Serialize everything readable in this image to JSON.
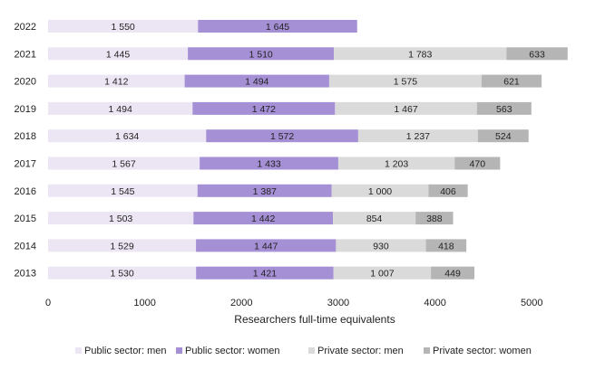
{
  "chart_data": {
    "type": "bar",
    "orientation": "horizontal",
    "stacked": true,
    "categories": [
      "2022",
      "2021",
      "2020",
      "2019",
      "2018",
      "2017",
      "2016",
      "2015",
      "2014",
      "2013"
    ],
    "series": [
      {
        "name": "Public sector: men",
        "color": "#ece6f4",
        "values": [
          1550,
          1445,
          1412,
          1494,
          1634,
          1567,
          1545,
          1503,
          1529,
          1530
        ],
        "labels": [
          "1 550",
          "1 445",
          "1 412",
          "1 494",
          "1 634",
          "1 567",
          "1 545",
          "1 503",
          "1 529",
          "1 530"
        ]
      },
      {
        "name": "Public sector: women",
        "color": "#a58fd5",
        "values": [
          1645,
          1510,
          1494,
          1472,
          1572,
          1433,
          1387,
          1442,
          1447,
          1421
        ],
        "labels": [
          "1 645",
          "1 510",
          "1 494",
          "1 472",
          "1 572",
          "1 433",
          "1 387",
          "1 442",
          "1 447",
          "1 421"
        ]
      },
      {
        "name": "Private sector: men",
        "color": "#dadada",
        "values": [
          null,
          1783,
          1575,
          1467,
          1237,
          1203,
          1000,
          854,
          930,
          1007
        ],
        "labels": [
          "",
          "1 783",
          "1 575",
          "1 467",
          "1 237",
          "1 203",
          "1 000",
          "854",
          "930",
          "1 007"
        ]
      },
      {
        "name": "Private sector: women",
        "color": "#b5b5b5",
        "values": [
          null,
          633,
          621,
          563,
          524,
          470,
          406,
          388,
          418,
          449
        ],
        "labels": [
          "",
          "633",
          "621",
          "563",
          "524",
          "470",
          "406",
          "388",
          "418",
          "449"
        ]
      }
    ],
    "xlabel": "Researchers full-time equivalents",
    "xlim": [
      0,
      5500
    ],
    "xticks": [
      0,
      1000,
      2000,
      3000,
      4000,
      5000
    ],
    "xtick_labels": [
      "0",
      "1000",
      "2000",
      "3000",
      "4000",
      "5000"
    ],
    "grid": false,
    "legend_position": "bottom"
  }
}
